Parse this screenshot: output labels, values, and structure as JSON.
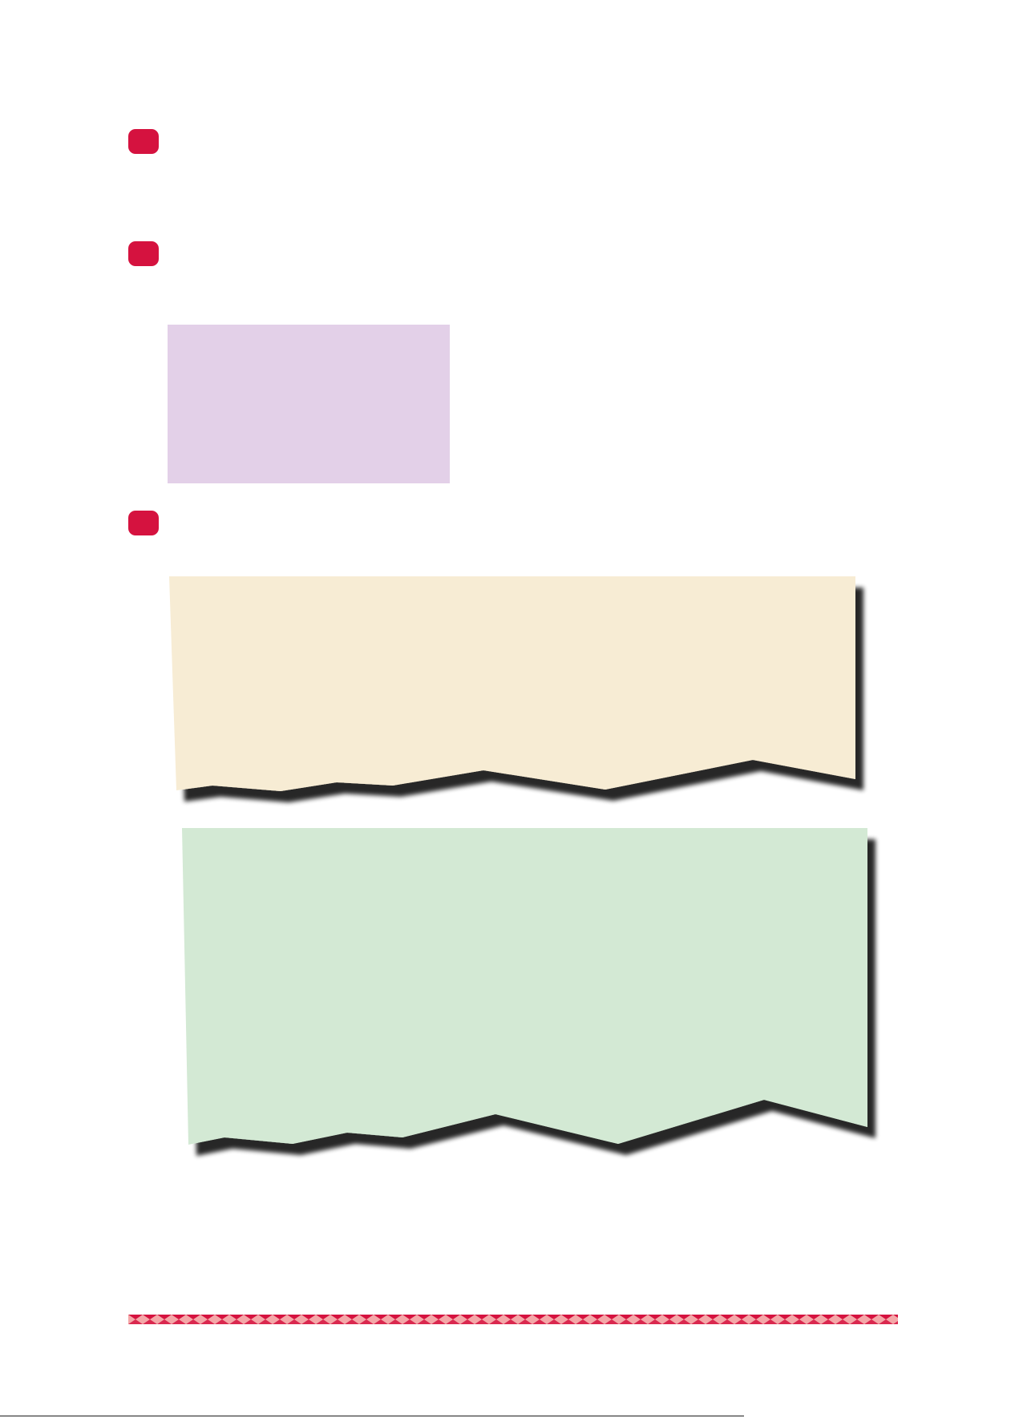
{
  "page": {
    "footer_text": "",
    "colors": {
      "marker": "#d5123f",
      "purple_box": "#e3d0e8",
      "beige_box": "#f7ecd4",
      "green_box": "#d3e9d4",
      "shadow": "#444444",
      "ribbon_dark": "#d5123f",
      "ribbon_light": "#f4a7a8"
    },
    "markers": [
      "step-1",
      "step-2",
      "step-3"
    ]
  }
}
